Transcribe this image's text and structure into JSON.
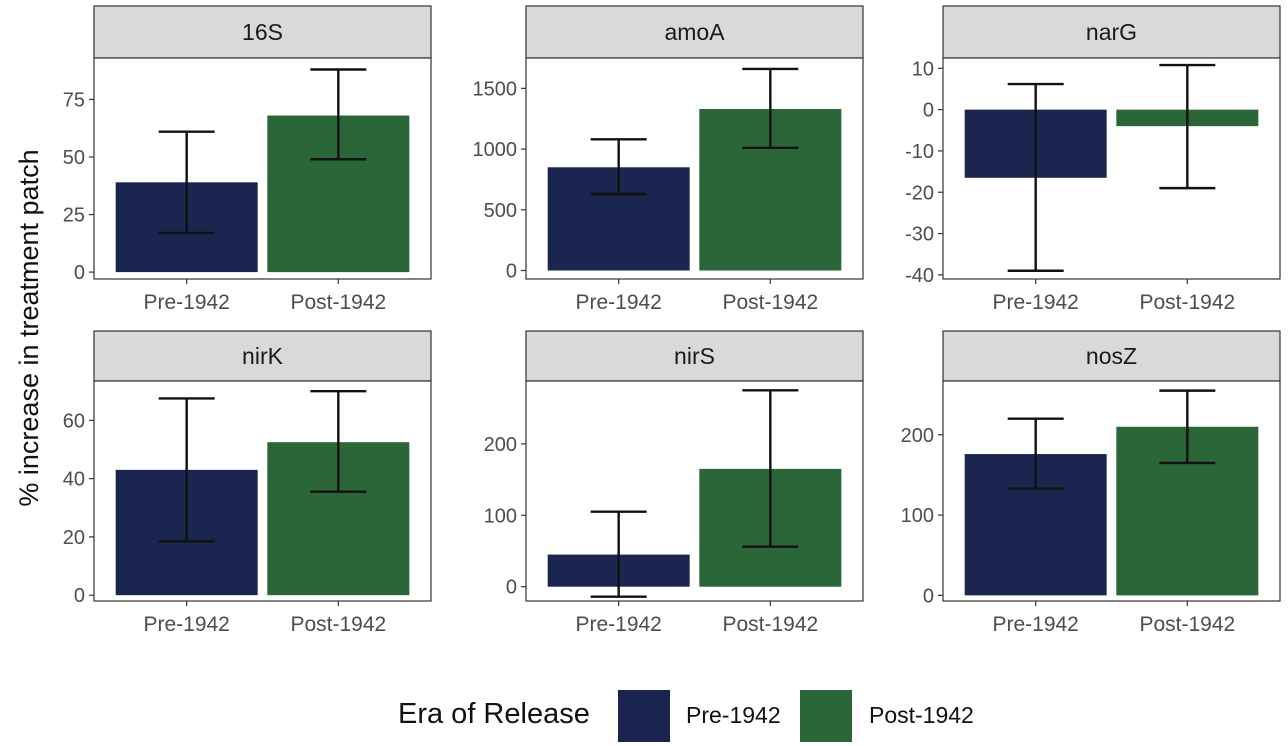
{
  "ylabel": "% increase in treatment patch",
  "colors": {
    "pre": "#1a2550",
    "post": "#2a6637",
    "strip": "#d9d9d9"
  },
  "legend": {
    "title": "Era of Release",
    "items": [
      {
        "label": "Pre-1942",
        "color": "#1a2550"
      },
      {
        "label": "Post-1942",
        "color": "#2a6637"
      }
    ]
  },
  "chart_data": [
    {
      "type": "bar",
      "title": "16S",
      "categories": [
        "Pre-1942",
        "Post-1942"
      ],
      "values": [
        39,
        68
      ],
      "errors": [
        [
          17,
          61
        ],
        [
          49,
          88
        ]
      ],
      "ylim": [
        -3,
        93
      ],
      "yticks": [
        0,
        25,
        50,
        75
      ]
    },
    {
      "type": "bar",
      "title": "amoA",
      "categories": [
        "Pre-1942",
        "Post-1942"
      ],
      "values": [
        850,
        1330
      ],
      "errors": [
        [
          630,
          1080
        ],
        [
          1010,
          1660
        ]
      ],
      "ylim": [
        -70,
        1750
      ],
      "yticks": [
        0,
        500,
        1000,
        1500
      ]
    },
    {
      "type": "bar",
      "title": "narG",
      "categories": [
        "Pre-1942",
        "Post-1942"
      ],
      "values": [
        -16.5,
        -4
      ],
      "errors": [
        [
          -39,
          6.2
        ],
        [
          -19,
          10.8
        ]
      ],
      "ylim": [
        -41,
        12.5
      ],
      "yticks": [
        -40,
        -30,
        -20,
        -10,
        0,
        10
      ]
    },
    {
      "type": "bar",
      "title": "nirK",
      "categories": [
        "Pre-1942",
        "Post-1942"
      ],
      "values": [
        43,
        52.5
      ],
      "errors": [
        [
          18.5,
          67.5
        ],
        [
          35.5,
          70
        ]
      ],
      "ylim": [
        -2,
        73.5
      ],
      "yticks": [
        0,
        20,
        40,
        60
      ]
    },
    {
      "type": "bar",
      "title": "nirS",
      "categories": [
        "Pre-1942",
        "Post-1942"
      ],
      "values": [
        45,
        165
      ],
      "errors": [
        [
          -14,
          105
        ],
        [
          56,
          275
        ]
      ],
      "ylim": [
        -20,
        288
      ],
      "yticks": [
        0,
        100,
        200
      ]
    },
    {
      "type": "bar",
      "title": "nosZ",
      "categories": [
        "Pre-1942",
        "Post-1942"
      ],
      "values": [
        176,
        210
      ],
      "errors": [
        [
          133,
          220
        ],
        [
          165,
          255
        ]
      ],
      "ylim": [
        -7,
        267
      ],
      "yticks": [
        0,
        100,
        200
      ]
    }
  ]
}
